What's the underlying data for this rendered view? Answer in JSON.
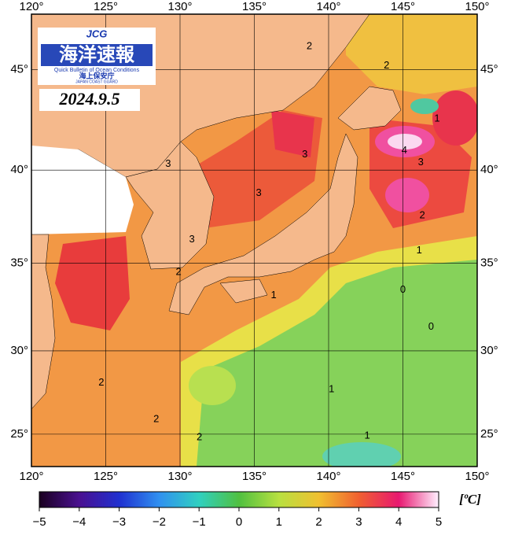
{
  "header": {
    "logo": "JCG",
    "name": "海洋速報",
    "subtitle": "Quick Bulletin of Ocean Conditions",
    "agency": "海上保安庁",
    "agency_en": "JAPAN COAST GUARD",
    "date": "2024.9.5"
  },
  "map": {
    "lonlim": [
      120,
      150
    ],
    "latlim": [
      23.0,
      47.6
    ],
    "lonticks": [
      {
        "value": 120,
        "label": "120°"
      },
      {
        "value": 125,
        "label": "125°"
      },
      {
        "value": 130,
        "label": "130°"
      },
      {
        "value": 135,
        "label": "135°"
      },
      {
        "value": 140,
        "label": "140°"
      },
      {
        "value": 145,
        "label": "145°"
      },
      {
        "value": 150,
        "label": "150°"
      }
    ],
    "latticks": [
      {
        "value": 25,
        "label": "25°"
      },
      {
        "value": 30,
        "label": "30°"
      },
      {
        "value": 35,
        "label": "35°"
      },
      {
        "value": 40,
        "label": "40°"
      },
      {
        "value": 45,
        "label": "45°"
      }
    ],
    "grid": true,
    "contour_labels": [
      {
        "level": 2,
        "lon": 138.7,
        "lat": 46.1
      },
      {
        "level": 2,
        "lon": 143.9,
        "lat": 45.2
      },
      {
        "level": 1,
        "lon": 147.3,
        "lat": 42.6
      },
      {
        "level": 3,
        "lon": 138.4,
        "lat": 40.8
      },
      {
        "level": 3,
        "lon": 129.2,
        "lat": 40.3
      },
      {
        "level": 3,
        "lon": 135.3,
        "lat": 38.8
      },
      {
        "level": 4,
        "lon": 145.1,
        "lat": 41.0
      },
      {
        "level": 3,
        "lon": 146.2,
        "lat": 40.4
      },
      {
        "level": 2,
        "lon": 146.3,
        "lat": 37.6
      },
      {
        "level": 3,
        "lon": 130.8,
        "lat": 36.3
      },
      {
        "level": 1,
        "lon": 146.1,
        "lat": 35.7
      },
      {
        "level": 2,
        "lon": 129.9,
        "lat": 34.5
      },
      {
        "level": 1,
        "lon": 136.3,
        "lat": 33.2
      },
      {
        "level": 0,
        "lon": 145.0,
        "lat": 33.5
      },
      {
        "level": 0,
        "lon": 146.9,
        "lat": 31.4
      },
      {
        "level": 2,
        "lon": 124.7,
        "lat": 28.1
      },
      {
        "level": 1,
        "lon": 140.2,
        "lat": 27.7
      },
      {
        "level": 2,
        "lon": 128.4,
        "lat": 25.9
      },
      {
        "level": 2,
        "lon": 131.3,
        "lat": 24.8
      },
      {
        "level": 1,
        "lon": 142.6,
        "lat": 24.9
      }
    ]
  },
  "colorbar": {
    "lim": [
      -5,
      5
    ],
    "unit": "[ºC]",
    "ticks": [
      {
        "value": -5,
        "label": "−5"
      },
      {
        "value": -4,
        "label": "−4"
      },
      {
        "value": -3,
        "label": "−3"
      },
      {
        "value": -2,
        "label": "−2"
      },
      {
        "value": -1,
        "label": "−1"
      },
      0,
      1,
      2,
      3,
      4,
      5
    ]
  }
}
